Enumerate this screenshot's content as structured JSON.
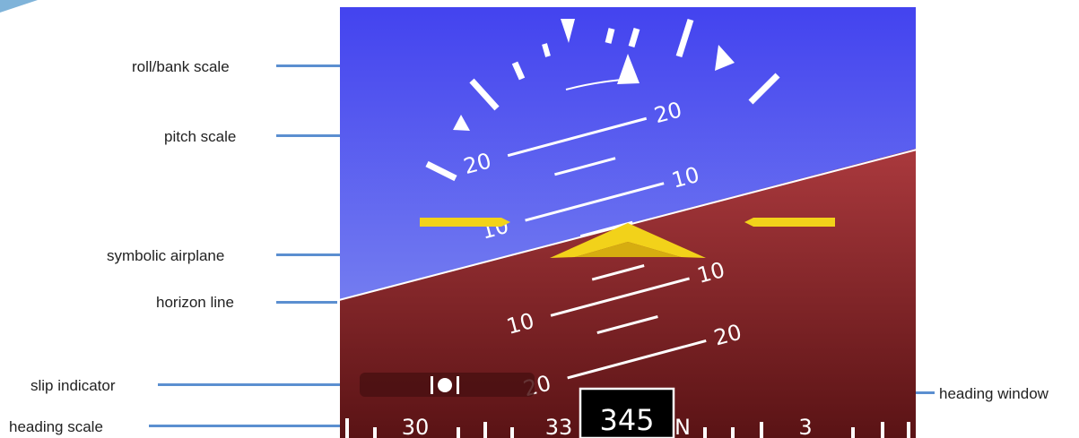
{
  "labels": {
    "roll_bank_scale": "roll/bank scale",
    "pitch_scale": "pitch scale",
    "symbolic_airplane": "symbolic airplane",
    "horizon_line": "horizon line",
    "slip_indicator": "slip indicator",
    "heading_scale": "heading scale",
    "heading_window": "heading window"
  },
  "pitch_scale": {
    "labels": [
      "10",
      "10",
      "10",
      "10",
      "20",
      "20",
      "20",
      "20"
    ]
  },
  "heading_scale": {
    "labels": [
      "30",
      "33",
      "N",
      "3"
    ],
    "window_value": "345"
  },
  "colors": {
    "sky_top": "#4444ee",
    "sky_bottom": "#7f8ef0",
    "ground_top": "#a8373b",
    "ground_bottom": "#5d1416",
    "symbol_yellow": "#f2d21a",
    "leader_blue": "#5b8fd0"
  },
  "horizon_bank_deg": 16
}
